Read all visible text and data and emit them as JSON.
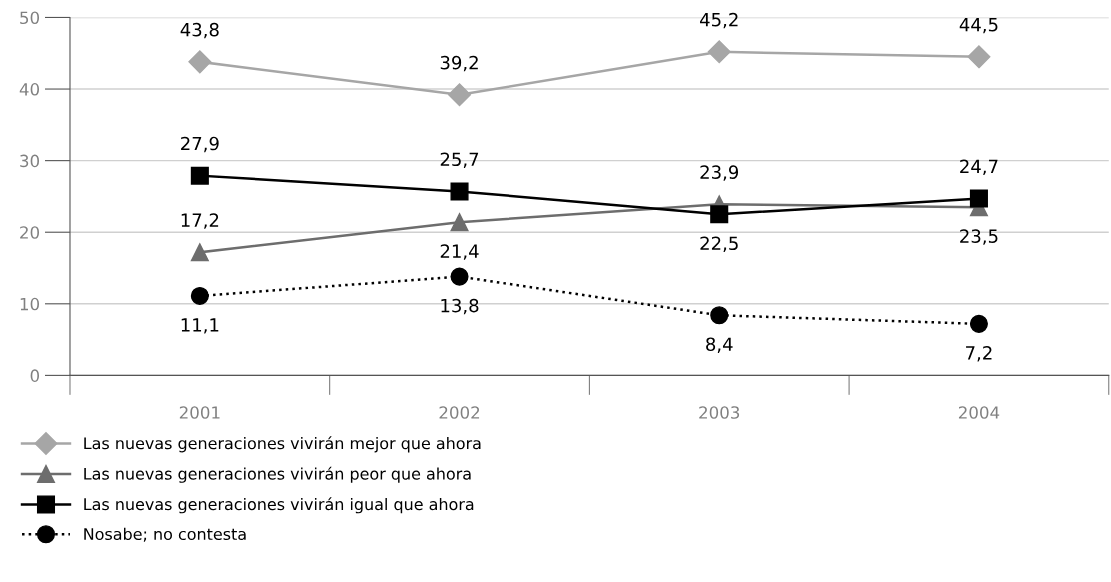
{
  "chart_data": {
    "type": "line",
    "categories": [
      "2001",
      "2002",
      "2003",
      "2004"
    ],
    "series": [
      {
        "name": "Las nuevas generaciones vivirán mejor que ahora",
        "color": "#a6a6a6",
        "marker": "diamond",
        "line_style": "solid",
        "values": [
          43.8,
          39.2,
          45.2,
          44.5
        ],
        "value_labels": [
          "43,8",
          "39,2",
          "45,2",
          "44,5"
        ]
      },
      {
        "name": "Las nuevas generaciones vivirán peor que ahora",
        "color": "#6d6d6d",
        "marker": "triangle",
        "line_style": "solid",
        "values": [
          17.2,
          21.4,
          23.9,
          23.5
        ],
        "value_labels": [
          "17,2",
          "21,4",
          "23,9",
          "23,5"
        ]
      },
      {
        "name": "Las nuevas generaciones vivirán igual que ahora",
        "color": "#000000",
        "marker": "square",
        "line_style": "solid",
        "values": [
          27.9,
          25.7,
          22.5,
          24.7
        ],
        "value_labels": [
          "27,9",
          "25,7",
          "22,5",
          "24,7"
        ]
      },
      {
        "name": "Nosabe; no contesta",
        "color": "#000000",
        "marker": "circle",
        "line_style": "dotted",
        "values": [
          11.1,
          13.8,
          8.4,
          7.2
        ],
        "value_labels": [
          "11,1",
          "13,8",
          "8,4",
          "7,2"
        ]
      }
    ],
    "ylim": [
      0,
      50
    ],
    "yticks": [
      0,
      10,
      20,
      30,
      40,
      50
    ],
    "grid": "y",
    "legend": "bottom"
  }
}
